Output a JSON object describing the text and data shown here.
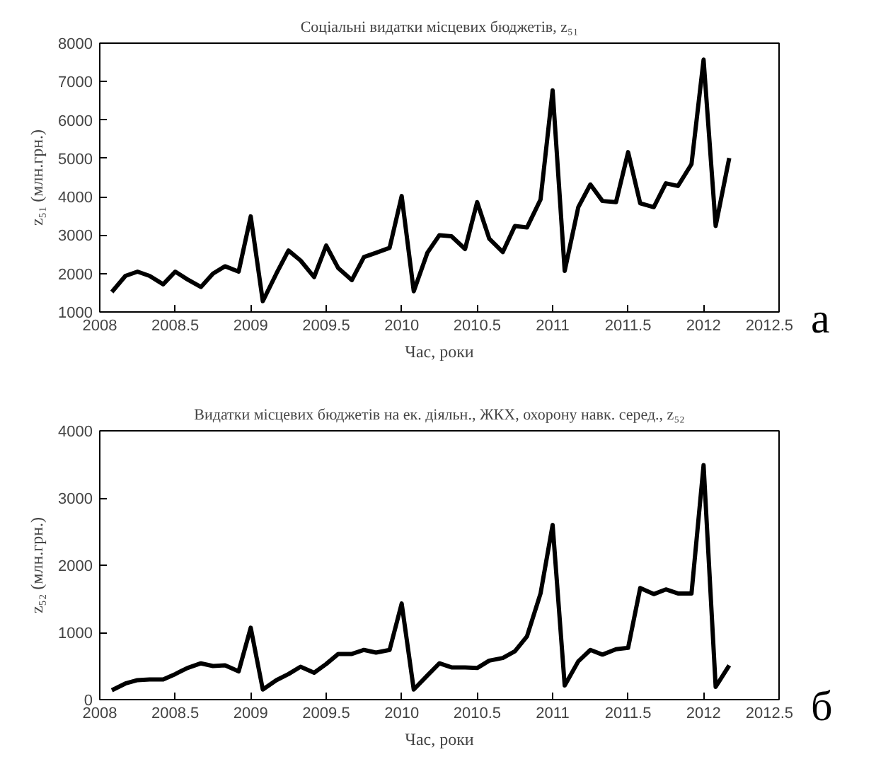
{
  "chart_data": [
    {
      "type": "line",
      "title": "Соціальні видатки місцевих бюджетів, z₅₁",
      "xlabel": "Час, роки",
      "ylabel": "z₅₁ (млн.грн.)",
      "annotations": [
        "а"
      ],
      "x": [
        2008.08,
        2008.17,
        2008.25,
        2008.33,
        2008.42,
        2008.5,
        2008.58,
        2008.67,
        2008.75,
        2008.83,
        2008.92,
        2009.0,
        2009.08,
        2009.17,
        2009.25,
        2009.33,
        2009.42,
        2009.5,
        2009.58,
        2009.67,
        2009.75,
        2009.83,
        2009.92,
        2010.0,
        2010.08,
        2010.17,
        2010.25,
        2010.33,
        2010.42,
        2010.5,
        2010.58,
        2010.67,
        2010.75,
        2010.83,
        2010.92,
        2011.0,
        2011.08,
        2011.17,
        2011.25,
        2011.33,
        2011.42,
        2011.5,
        2011.58,
        2011.67,
        2011.75,
        2011.83,
        2011.92,
        2012.0,
        2012.08,
        2012.17
      ],
      "series": [
        {
          "color": "#000000",
          "values": [
            1520,
            1940,
            2050,
            1940,
            1720,
            2050,
            1850,
            1650,
            2000,
            2190,
            2050,
            3490,
            1280,
            2000,
            2600,
            2340,
            1910,
            2730,
            2140,
            1830,
            2430,
            2540,
            2670,
            4020,
            1540,
            2540,
            3000,
            2970,
            2640,
            3860,
            2910,
            2560,
            3240,
            3200,
            3930,
            6770,
            2070,
            3730,
            4320,
            3890,
            3860,
            5160,
            3830,
            3730,
            4350,
            4280,
            4850,
            7570,
            3240,
            5010
          ]
        }
      ],
      "xlim": [
        2008,
        2012.5
      ],
      "xticks": [
        2008,
        2008.5,
        2009,
        2009.5,
        2010,
        2010.5,
        2011,
        2011.5,
        2012,
        2012.5
      ],
      "ylim": [
        1000,
        8000
      ],
      "yticks": [
        1000,
        2000,
        3000,
        4000,
        5000,
        6000,
        7000,
        8000
      ],
      "grid": false,
      "line_style": "solid",
      "marker": "none"
    },
    {
      "type": "line",
      "title": "Видатки місцевих бюджетів на ек. діяльн., ЖКХ, охорону навк. серед., z₅₂",
      "xlabel": "Час, роки",
      "ylabel": "z₅₂ (млн.грн.)",
      "annotations": [
        "б"
      ],
      "x": [
        2008.08,
        2008.17,
        2008.25,
        2008.33,
        2008.42,
        2008.5,
        2008.58,
        2008.67,
        2008.75,
        2008.83,
        2008.92,
        2009.0,
        2009.08,
        2009.17,
        2009.25,
        2009.33,
        2009.42,
        2009.5,
        2009.58,
        2009.67,
        2009.75,
        2009.83,
        2009.92,
        2010.0,
        2010.08,
        2010.17,
        2010.25,
        2010.33,
        2010.42,
        2010.5,
        2010.58,
        2010.67,
        2010.75,
        2010.83,
        2010.92,
        2011.0,
        2011.08,
        2011.17,
        2011.25,
        2011.33,
        2011.42,
        2011.5,
        2011.58,
        2011.67,
        2011.75,
        2011.83,
        2011.92,
        2012.0,
        2012.08,
        2012.17
      ],
      "series": [
        {
          "color": "#000000",
          "values": [
            140,
            240,
            290,
            300,
            300,
            380,
            470,
            540,
            500,
            510,
            420,
            1070,
            150,
            290,
            380,
            490,
            400,
            530,
            680,
            680,
            740,
            700,
            740,
            1430,
            150,
            360,
            540,
            480,
            480,
            470,
            580,
            620,
            720,
            940,
            1580,
            2600,
            210,
            570,
            740,
            670,
            750,
            770,
            1660,
            1570,
            1640,
            1580,
            1580,
            3490,
            190,
            510
          ]
        }
      ],
      "xlim": [
        2008,
        2012.5
      ],
      "xticks": [
        2008,
        2008.5,
        2009,
        2009.5,
        2010,
        2010.5,
        2011,
        2011.5,
        2012,
        2012.5
      ],
      "ylim": [
        0,
        4000
      ],
      "yticks": [
        0,
        1000,
        2000,
        3000,
        4000
      ],
      "grid": false,
      "line_style": "solid",
      "marker": "none"
    }
  ]
}
